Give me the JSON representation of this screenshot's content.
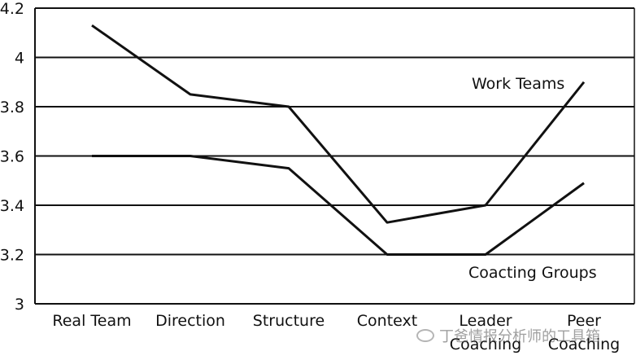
{
  "chart_data": {
    "type": "line",
    "categories": [
      "Real Team",
      "Direction",
      "Structure",
      "Context",
      "Leader\nCoaching",
      "Peer\nCoaching"
    ],
    "series": [
      {
        "name": "Work Teams",
        "values": [
          4.13,
          3.85,
          3.8,
          3.33,
          3.4,
          3.9
        ]
      },
      {
        "name": "Coacting Groups",
        "values": [
          3.6,
          3.6,
          3.55,
          3.2,
          3.2,
          3.49
        ]
      }
    ],
    "yticks": [
      "3",
      "3.2",
      "3.4",
      "3.6",
      "3.8",
      "4",
      "4.2"
    ],
    "ylim": [
      3,
      4.2
    ],
    "grid": "horizontal",
    "legend": "inline labels near lines",
    "colors": {
      "line": "#111111",
      "grid": "#111111",
      "background": "#ffffff"
    }
  },
  "watermark": {
    "icon": "wechat-icon",
    "text": "丁爸情报分析师的工具箱"
  }
}
